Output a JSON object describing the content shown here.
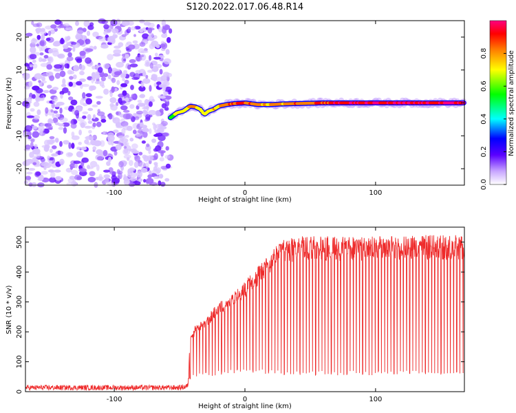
{
  "title": "S120.2022.017.06.48.R14",
  "colors": {
    "snr_line": "#ee2a2a",
    "axis": "#000000"
  },
  "chart_data": [
    {
      "type": "heatmap",
      "xlabel": "Height of straight line (km)",
      "ylabel": "Frequency (Hz)",
      "xlim": [
        -168,
        168
      ],
      "ylim": [
        -25,
        25
      ],
      "xticks": [
        -100,
        0,
        100
      ],
      "yticks": [
        -20,
        -10,
        0,
        10,
        20
      ],
      "x_tick_labels": [
        "-100",
        "0",
        "100"
      ],
      "y_tick_labels": [
        "-20",
        "-10",
        "0",
        "10",
        "20"
      ],
      "colorbar": {
        "label": "Normalized spectral amplitude",
        "range": [
          0,
          1
        ],
        "ticks": [
          0.0,
          0.2,
          0.4,
          0.6,
          0.8
        ],
        "tick_labels": [
          "0.0",
          "0.2",
          "0.4",
          "0.6",
          "0.8"
        ],
        "colormap": [
          "#ffffff",
          "#5500ff",
          "#0000ff",
          "#00ffff",
          "#00ff00",
          "#ffff00",
          "#ff8800",
          "#ff0000",
          "#ff0088"
        ]
      },
      "noise_region_x": [
        -168,
        -57
      ],
      "signal_trace": {
        "x": [
          -57,
          -52,
          -47,
          -42,
          -38,
          -34,
          -31,
          -28,
          -24,
          -20,
          -14,
          -8,
          0,
          10,
          20,
          30,
          40,
          60,
          80,
          100,
          120,
          140,
          160,
          168
        ],
        "y": [
          -4.5,
          -3.0,
          -2.5,
          -1.0,
          -1.2,
          -2.0,
          -3.5,
          -2.5,
          -2.0,
          -1.0,
          -0.5,
          -0.2,
          0.0,
          -0.5,
          -0.5,
          -0.3,
          -0.2,
          0.0,
          0.0,
          0.0,
          0.0,
          0.0,
          0.0,
          0.0
        ],
        "amplitude": [
          0.5,
          0.6,
          0.65,
          0.7,
          0.7,
          0.65,
          0.6,
          0.6,
          0.65,
          0.7,
          0.75,
          0.8,
          0.85,
          0.75,
          0.7,
          0.75,
          0.8,
          0.85,
          0.9,
          0.9,
          0.9,
          0.9,
          0.92,
          0.95
        ]
      }
    },
    {
      "type": "line",
      "xlabel": "Height of straight line (km)",
      "ylabel": "SNR (10 * v/v)",
      "xlim": [
        -168,
        168
      ],
      "ylim": [
        0,
        550
      ],
      "xticks": [
        -100,
        0,
        100
      ],
      "yticks": [
        0,
        100,
        200,
        300,
        400,
        500
      ],
      "x_tick_labels": [
        "-100",
        "0",
        "100"
      ],
      "y_tick_labels": [
        "0",
        "100",
        "200",
        "300",
        "400",
        "500"
      ],
      "envelope": {
        "x": [
          -168,
          -50,
          -44,
          -42,
          -38,
          -30,
          -20,
          -10,
          0,
          10,
          20,
          30,
          40,
          60,
          100,
          140,
          168
        ],
        "upper": [
          22,
          22,
          28,
          180,
          220,
          250,
          300,
          330,
          370,
          420,
          470,
          510,
          520,
          520,
          520,
          525,
          525
        ],
        "lower": [
          5,
          5,
          8,
          40,
          45,
          50,
          55,
          60,
          65,
          60,
          58,
          55,
          55,
          55,
          55,
          55,
          55
        ]
      },
      "spike_spacing_km": 2.4,
      "spikes_start_x": -42
    }
  ]
}
